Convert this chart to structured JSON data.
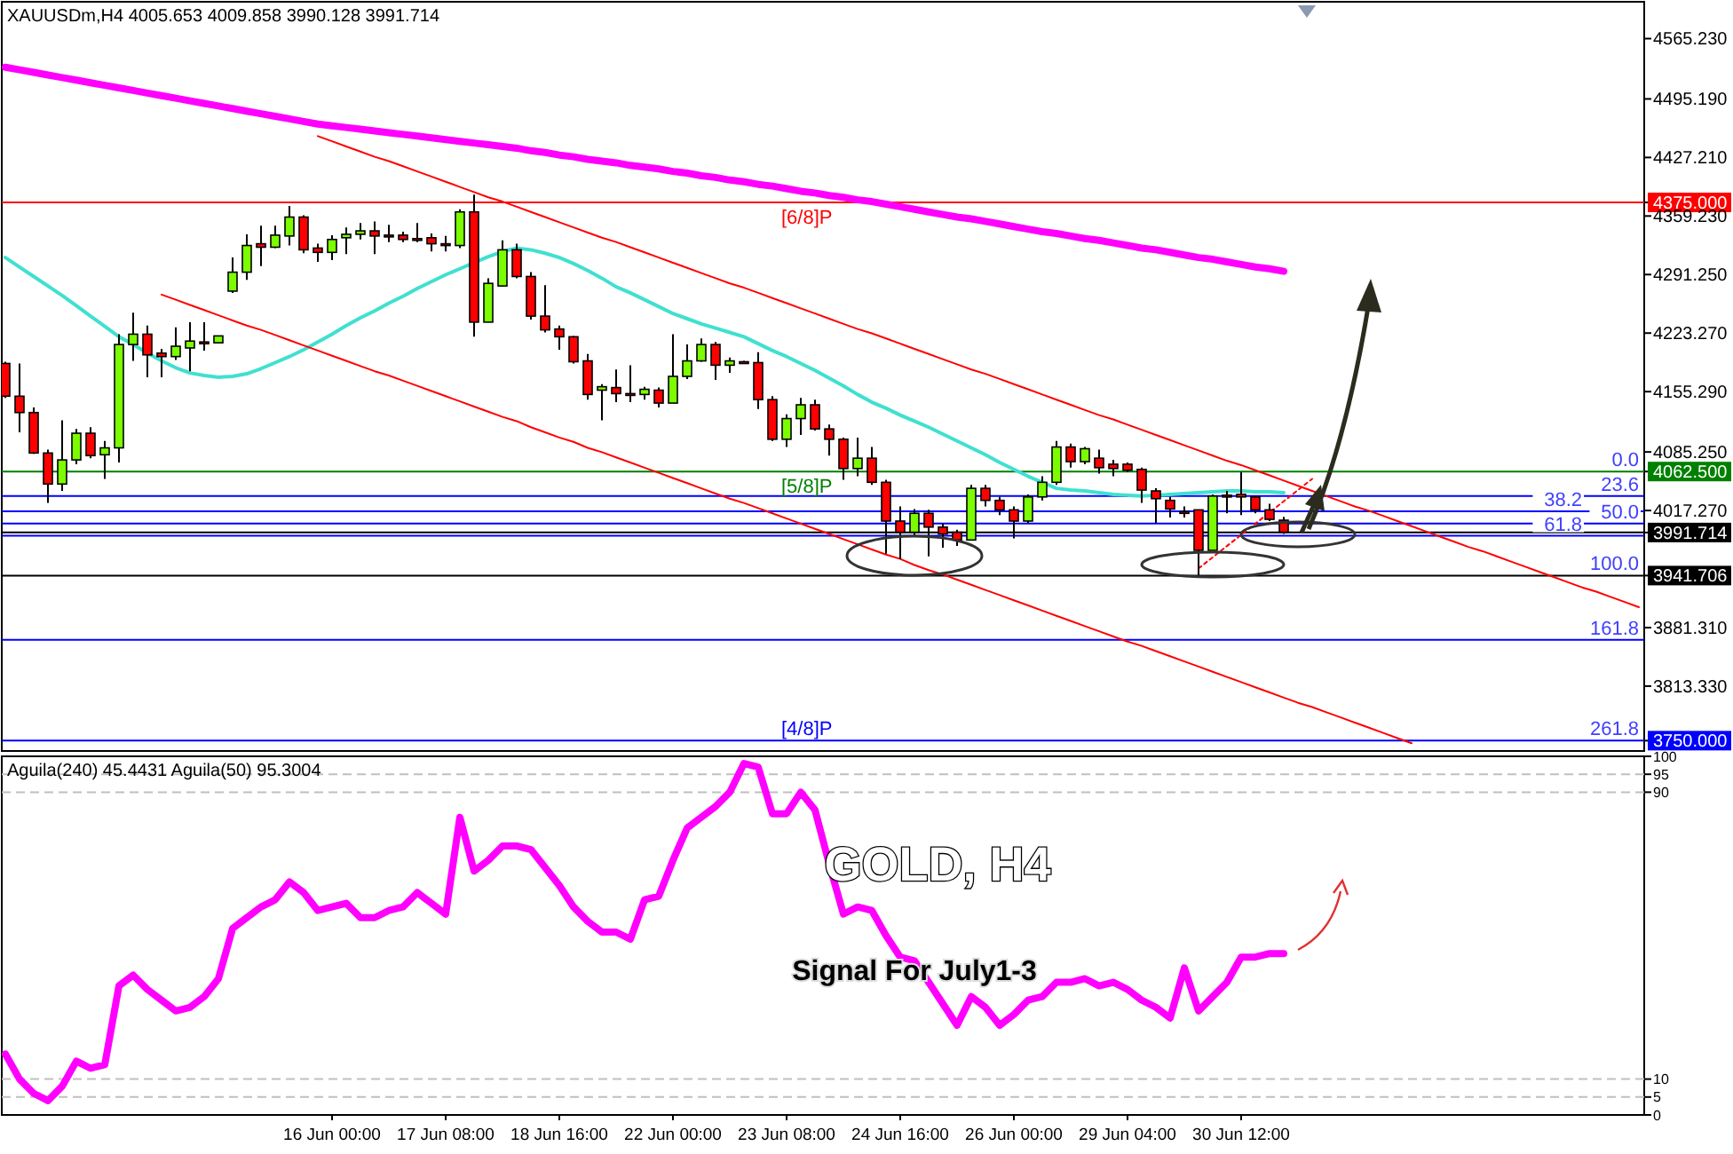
{
  "chart_data": [
    {
      "type": "candlestick",
      "title": "XAUUSDm,H4 4005.653 4009.858 3990.128 3991.714",
      "categories": [
        null,
        null,
        null,
        null,
        null,
        null,
        null,
        null,
        null,
        null,
        null,
        null,
        null,
        null,
        null,
        null,
        null,
        null,
        null,
        null,
        null,
        null,
        null,
        null,
        null,
        null,
        null,
        null,
        null,
        null,
        null,
        null,
        null,
        null,
        null,
        null,
        null,
        null,
        null,
        null,
        null,
        null,
        null,
        null,
        null,
        null,
        null,
        null,
        null,
        null,
        null,
        null,
        null,
        null,
        null,
        null,
        null,
        null,
        null,
        null,
        null,
        null,
        null,
        null,
        null,
        null,
        null,
        null,
        null,
        null,
        null,
        null,
        null,
        null,
        null,
        null,
        null,
        null,
        null,
        null,
        null,
        null,
        null,
        null,
        null,
        null,
        null,
        null,
        null,
        null,
        null,
        null,
        null,
        null,
        null,
        null,
        null,
        null,
        null,
        null,
        null,
        null,
        null,
        null,
        null,
        null,
        null,
        null,
        null,
        null,
        null,
        null,
        null,
        null,
        null,
        null
      ],
      "ohlc": [
        [
          4188,
          4190,
          4148,
          4150
        ],
        [
          4150,
          4188,
          4108,
          4131
        ],
        [
          4131,
          4137,
          4083,
          4084
        ],
        [
          4084,
          4088,
          4026,
          4048
        ],
        [
          4048,
          4122,
          4040,
          4076
        ],
        [
          4076,
          4112,
          4071,
          4107
        ],
        [
          4107,
          4114,
          4078,
          4081
        ],
        [
          4082,
          4098,
          4054,
          4090
        ],
        [
          4090,
          4222,
          4073,
          4210
        ],
        [
          4210,
          4247,
          4191,
          4222
        ],
        [
          4222,
          4232,
          4172,
          4198
        ],
        [
          4200,
          4205,
          4172,
          4196
        ],
        [
          4196,
          4230,
          4192,
          4208
        ],
        [
          4206,
          4236,
          4179,
          4214
        ],
        [
          4213,
          4236,
          4203,
          4212
        ],
        [
          4212,
          4220,
          4212,
          4220
        ],
        [
          4272,
          4311,
          4270,
          4294
        ],
        [
          4294,
          4338,
          4285,
          4325
        ],
        [
          4327,
          4348,
          4301,
          4323
        ],
        [
          4323,
          4348,
          4322,
          4337
        ],
        [
          4336,
          4371,
          4325,
          4358
        ],
        [
          4358,
          4360,
          4316,
          4320
        ],
        [
          4322,
          4327,
          4306,
          4317
        ],
        [
          4317,
          4337,
          4308,
          4332
        ],
        [
          4334,
          4346,
          4315,
          4338
        ],
        [
          4338,
          4351,
          4332,
          4342
        ],
        [
          4342,
          4353,
          4315,
          4336
        ],
        [
          4337,
          4349,
          4329,
          4336
        ],
        [
          4337,
          4341,
          4329,
          4332
        ],
        [
          4333,
          4351,
          4329,
          4332
        ],
        [
          4334,
          4339,
          4318,
          4327
        ],
        [
          4327,
          4336,
          4318,
          4326
        ],
        [
          4325,
          4367,
          4322,
          4364
        ],
        [
          4364,
          4384,
          4219,
          4236
        ],
        [
          4236,
          4287,
          4236,
          4281
        ],
        [
          4278,
          4331,
          4277,
          4320
        ],
        [
          4320,
          4327,
          4287,
          4289
        ],
        [
          4289,
          4294,
          4239,
          4243
        ],
        [
          4243,
          4279,
          4224,
          4227
        ],
        [
          4228,
          4232,
          4204,
          4219
        ],
        [
          4219,
          4220,
          4188,
          4190
        ],
        [
          4191,
          4199,
          4146,
          4152
        ],
        [
          4157,
          4164,
          4122,
          4161
        ],
        [
          4160,
          4181,
          4143,
          4153
        ],
        [
          4153,
          4186,
          4143,
          4152
        ],
        [
          4152,
          4161,
          4146,
          4158
        ],
        [
          4157,
          4160,
          4137,
          4142
        ],
        [
          4142,
          4222,
          4142,
          4173
        ],
        [
          4173,
          4210,
          4170,
          4191
        ],
        [
          4191,
          4217,
          4190,
          4210
        ],
        [
          4210,
          4213,
          4169,
          4186
        ],
        [
          4186,
          4195,
          4177,
          4191
        ],
        [
          4190,
          4191,
          4188,
          4189
        ],
        [
          4189,
          4201,
          4135,
          4146
        ],
        [
          4146,
          4150,
          4098,
          4100
        ],
        [
          4100,
          4129,
          4091,
          4124
        ],
        [
          4124,
          4148,
          4105,
          4140
        ],
        [
          4140,
          4146,
          4110,
          4112
        ],
        [
          4112,
          4117,
          4081,
          4100
        ],
        [
          4100,
          4102,
          4053,
          4066
        ],
        [
          4066,
          4102,
          4057,
          4078
        ],
        [
          4078,
          4091,
          4047,
          4050
        ],
        [
          4050,
          4053,
          3967,
          4005
        ],
        [
          4005,
          4022,
          3961,
          3992
        ],
        [
          3992,
          4019,
          3988,
          4014
        ],
        [
          4014,
          4018,
          3964,
          3998
        ],
        [
          3998,
          4002,
          3974,
          3990
        ],
        [
          3992,
          3995,
          3976,
          3983
        ],
        [
          3983,
          4047,
          3983,
          4043
        ],
        [
          4043,
          4047,
          4022,
          4029
        ],
        [
          4029,
          4033,
          4012,
          4018
        ],
        [
          4018,
          4022,
          3985,
          4005
        ],
        [
          4005,
          4036,
          4003,
          4033
        ],
        [
          4033,
          4057,
          4029,
          4050
        ],
        [
          4050,
          4098,
          4047,
          4091
        ],
        [
          4091,
          4095,
          4067,
          4074
        ],
        [
          4074,
          4091,
          4071,
          4089
        ],
        [
          4078,
          4088,
          4060,
          4067
        ],
        [
          4071,
          4076,
          4057,
          4066
        ],
        [
          4071,
          4073,
          4062,
          4064
        ],
        [
          4065,
          4067,
          4026,
          4041
        ],
        [
          4040,
          4043,
          4003,
          4031
        ],
        [
          4029,
          4033,
          4009,
          4019
        ],
        [
          4016,
          4022,
          4009,
          4015
        ],
        [
          4018,
          4018,
          3942,
          3971
        ],
        [
          3971,
          4036,
          3971,
          4034
        ],
        [
          4035,
          4040,
          4014,
          4034
        ],
        [
          4036,
          4062,
          4012,
          4033
        ],
        [
          4033,
          4034,
          4014,
          4018
        ],
        [
          4018,
          4025,
          4005,
          4007
        ],
        [
          4006,
          4010,
          3990,
          3992
        ],
        null,
        null,
        null,
        null,
        null,
        null,
        null,
        null,
        null,
        null,
        null,
        null,
        null,
        null,
        null,
        null,
        null,
        null,
        null,
        null,
        null,
        null,
        null,
        null,
        null
      ],
      "series": [
        {
          "type": "line",
          "color": "#ff00ff",
          "values": [
            4532,
            4529,
            4526,
            4523,
            4520,
            4517,
            4514,
            4511,
            4508,
            4505,
            4502,
            4499,
            4496,
            4493,
            4490,
            4487,
            4484,
            4481,
            4478,
            4475,
            4472,
            4469,
            4466,
            4464,
            4462,
            4460,
            4458,
            4456,
            4454,
            4452,
            4450,
            4448,
            4446,
            4444,
            4442,
            4440,
            4438,
            4435,
            4433,
            4430,
            4428,
            4425,
            4423,
            4421,
            4418,
            4416,
            4414,
            4411,
            4409,
            4406,
            4404,
            4401,
            4399,
            4396,
            4394,
            4391,
            4388,
            4386,
            4383,
            4381,
            4378,
            4376,
            4373,
            4370,
            4367,
            4364,
            4361,
            4358,
            4356,
            4353,
            4350,
            4347,
            4344,
            4341,
            4339,
            4336,
            4333,
            4331,
            4328,
            4325,
            4322,
            4320,
            4317,
            4314,
            4311,
            4309,
            4306,
            4303,
            4300,
            4298,
            4295,
            null,
            null,
            null,
            null,
            null,
            null,
            null,
            null,
            null,
            null,
            null,
            null,
            null,
            null,
            null,
            null,
            null,
            null,
            null,
            null,
            null,
            null,
            null,
            null,
            null
          ]
        },
        {
          "type": "line",
          "color": "#40e0d0",
          "values": [
            4311,
            4300,
            4289,
            4278,
            4267,
            4255,
            4243,
            4231,
            4219,
            4210,
            4200,
            4191,
            4183,
            4177,
            4174,
            4172,
            4173,
            4176,
            4182,
            4189,
            4196,
            4204,
            4213,
            4222,
            4232,
            4241,
            4249,
            4258,
            4266,
            4275,
            4283,
            4291,
            4298,
            4305,
            4312,
            4318,
            4322,
            4320,
            4316,
            4311,
            4304,
            4296,
            4287,
            4277,
            4270,
            4262,
            4254,
            4246,
            4240,
            4234,
            4229,
            4224,
            4219,
            4211,
            4203,
            4196,
            4188,
            4180,
            4171,
            4162,
            4152,
            4143,
            4136,
            4128,
            4121,
            4114,
            4106,
            4098,
            4090,
            4082,
            4073,
            4065,
            4057,
            4050,
            4043,
            4041,
            4040,
            4038,
            4036,
            4035,
            4034,
            4035,
            4036,
            4037,
            4038,
            4039,
            4040,
            4040,
            4039,
            4039,
            4038,
            null,
            null,
            null,
            null,
            null,
            null,
            null,
            null,
            null,
            null,
            null,
            null,
            null,
            null,
            null,
            null,
            null,
            null,
            null,
            null,
            null,
            null,
            null,
            null,
            null
          ]
        },
        {
          "type": "line",
          "color": "#ff0000",
          "values": [
            null,
            null,
            null,
            null,
            null,
            null,
            null,
            null,
            null,
            null,
            null,
            null,
            null,
            null,
            null,
            null,
            null,
            null,
            null,
            null,
            null,
            null,
            4452,
            4446,
            4440,
            4434,
            4428,
            4423,
            4417,
            4411,
            4405,
            4399,
            4393,
            4387,
            4381,
            4376,
            4370,
            4364,
            4358,
            4352,
            4346,
            4340,
            4334,
            4329,
            4323,
            4317,
            4311,
            4305,
            4299,
            4293,
            4287,
            4281,
            4276,
            4270,
            4264,
            4258,
            4252,
            4246,
            4240,
            4234,
            4228,
            4223,
            4217,
            4211,
            4205,
            4199,
            4193,
            4187,
            4181,
            4176,
            4170,
            4164,
            4158,
            4152,
            4146,
            4140,
            4134,
            4128,
            4123,
            4117,
            4111,
            4105,
            4099,
            4093,
            4087,
            4081,
            4075,
            4070,
            4064,
            4058,
            4052,
            4046,
            4040,
            4034,
            4028,
            4022,
            4017,
            4011,
            4005,
            3999,
            3993,
            3987,
            3981,
            3975,
            3970,
            3964,
            3958,
            3952,
            3946,
            3940,
            3934,
            3928,
            3923,
            3917,
            3911,
            3905
          ]
        },
        {
          "type": "line",
          "color": "#ff0000",
          "values": [
            null,
            null,
            null,
            null,
            null,
            null,
            null,
            null,
            null,
            null,
            null,
            4268,
            4262,
            4256,
            4250,
            4244,
            4238,
            4232,
            4227,
            4221,
            4215,
            4209,
            4203,
            4197,
            4191,
            4185,
            4179,
            4174,
            4168,
            4162,
            4156,
            4150,
            4144,
            4138,
            4132,
            4126,
            4121,
            4114,
            4108,
            4102,
            4097,
            4090,
            4085,
            4079,
            4073,
            4067,
            4061,
            4055,
            4049,
            4043,
            4037,
            4031,
            4026,
            4020,
            4014,
            4008,
            4002,
            3996,
            3990,
            3984,
            3978,
            3972,
            3966,
            3961,
            3954,
            3948,
            3943,
            3937,
            3931,
            3925,
            3919,
            3913,
            3907,
            3901,
            3895,
            3889,
            3883,
            3877,
            3871,
            3865,
            3860,
            3854,
            3848,
            3842,
            3836,
            3830,
            3824,
            3818,
            3812,
            3806,
            3800,
            3794,
            3789,
            3783,
            3777,
            3771,
            3765,
            3759,
            3753,
            3747,
            null,
            null,
            null,
            null,
            null,
            null,
            null,
            null,
            null,
            null,
            null,
            null,
            null,
            null,
            null,
            null
          ]
        },
        {
          "type": "line",
          "color": "#ff0000",
          "line_style": "dotted",
          "values": [
            null,
            null,
            null,
            null,
            null,
            null,
            null,
            null,
            null,
            null,
            null,
            null,
            null,
            null,
            null,
            null,
            null,
            null,
            null,
            null,
            null,
            null,
            null,
            null,
            null,
            null,
            null,
            null,
            null,
            null,
            null,
            null,
            null,
            null,
            null,
            null,
            null,
            null,
            null,
            null,
            null,
            null,
            null,
            null,
            null,
            null,
            null,
            null,
            null,
            null,
            null,
            null,
            null,
            null,
            null,
            null,
            null,
            null,
            null,
            null,
            null,
            null,
            null,
            null,
            null,
            null,
            null,
            null,
            null,
            null,
            null,
            null,
            null,
            null,
            null,
            null,
            null,
            null,
            null,
            null,
            null,
            null,
            null,
            null,
            3950,
            3963,
            3976,
            3989,
            4002,
            4015,
            4028,
            4041,
            4054,
            null,
            null,
            null,
            null,
            null,
            null,
            null,
            null,
            null,
            null,
            null,
            null,
            null,
            null,
            null,
            null,
            null,
            null,
            null,
            null,
            null,
            null,
            null
          ]
        }
      ],
      "ylim": [
        3738,
        4608
      ],
      "yticks": [
        {
          "value": 4565.23,
          "label": "4565.230"
        },
        {
          "value": 4495.19,
          "label": "4495.190"
        },
        {
          "value": 4427.21,
          "label": "4427.210"
        },
        {
          "value": 4359.23,
          "label": "4359.230"
        },
        {
          "value": 4291.25,
          "label": "4291.250"
        },
        {
          "value": 4223.27,
          "label": "4223.270"
        },
        {
          "value": 4155.29,
          "label": "4155.290"
        },
        {
          "value": 4085.25,
          "label": "4085.250"
        },
        {
          "value": 4017.27,
          "label": "4017.270"
        },
        {
          "value": 3881.31,
          "label": "3881.310"
        },
        {
          "value": 3813.33,
          "label": "3813.330"
        },
        {
          "value": 4375,
          "label": "4375.000"
        },
        {
          "value": 4062.5,
          "label": "4062.500"
        },
        {
          "value": 3991.714,
          "label": "3991.714"
        },
        {
          "value": 3941.706,
          "label": "3941.706"
        },
        {
          "value": 3750,
          "label": "3750.000"
        }
      ],
      "ref_lines": [
        {
          "axis": "y",
          "value": 4375,
          "label": "[6/8]P",
          "color": "#ff0000"
        },
        {
          "axis": "y",
          "value": 4062.5,
          "label": "[5/8]P",
          "color": "#008000"
        },
        {
          "axis": "y",
          "value": 4034,
          "color": "#0000ff"
        },
        {
          "axis": "y",
          "value": 4016.4,
          "color": "#0000ff"
        },
        {
          "axis": "y",
          "value": 4002.1,
          "color": "#0000ff"
        },
        {
          "axis": "y",
          "value": 3987.9,
          "color": "#0000ff"
        },
        {
          "axis": "y",
          "value": 3991.714,
          "color": "#000000"
        },
        {
          "axis": "y",
          "value": 3941.706,
          "color": "#000000"
        },
        {
          "axis": "y",
          "value": 3867.1,
          "color": "#0000ff"
        },
        {
          "axis": "y",
          "value": 3750,
          "label": "[4/8]P",
          "color": "#0000ff"
        }
      ],
      "annotations": [
        {
          "text": "0.0",
          "y": 4062.5
        },
        {
          "text": "23.6",
          "y": 4034
        },
        {
          "text": "38.2",
          "y": 4016.4
        },
        {
          "text": "50.0",
          "y": 4002.1
        },
        {
          "text": "61.8",
          "y": 3987.9
        },
        {
          "text": "100.0",
          "y": 3941.706
        },
        {
          "text": "161.8",
          "y": 3867.1
        },
        {
          "text": "261.8",
          "y": 3750
        }
      ],
      "tick_labels": "y"
    },
    {
      "type": "line",
      "title": "Aguila(240) 45.4431 Aguila(50) 95.3004",
      "categories": [
        null,
        null,
        null,
        null,
        null,
        null,
        null,
        null,
        null,
        null,
        null,
        null,
        null,
        null,
        null,
        null,
        null,
        null,
        null,
        null,
        null,
        null,
        null,
        "16 Jun 00:00",
        null,
        null,
        null,
        null,
        null,
        null,
        null,
        "17 Jun 08:00",
        null,
        null,
        null,
        null,
        null,
        null,
        null,
        "18 Jun 16:00",
        null,
        null,
        null,
        null,
        null,
        null,
        null,
        "22 Jun 00:00",
        null,
        null,
        null,
        null,
        null,
        null,
        null,
        "23 Jun 08:00",
        null,
        null,
        null,
        null,
        null,
        null,
        null,
        "24 Jun 16:00",
        null,
        null,
        null,
        null,
        null,
        null,
        null,
        "26 Jun 00:00",
        null,
        null,
        null,
        null,
        null,
        null,
        null,
        "29 Jun 04:00",
        null,
        null,
        null,
        null,
        null,
        null,
        null,
        "30 Jun 12:00",
        null,
        null,
        null,
        null,
        null,
        null,
        null,
        null,
        null,
        null,
        null,
        null,
        null,
        null,
        null,
        null,
        null,
        null,
        null,
        null,
        null,
        null,
        null,
        null,
        null,
        null,
        null,
        null
      ],
      "series": [
        {
          "color": "#ff00ff",
          "values": [
            17,
            10,
            6,
            4,
            8,
            15,
            13,
            14,
            36,
            39,
            35,
            32,
            29,
            30,
            33,
            38,
            52,
            55,
            58,
            60,
            65,
            62,
            57,
            58,
            59,
            55,
            55,
            57,
            58,
            62,
            59,
            56,
            83,
            68,
            71,
            75,
            75,
            74,
            69,
            64,
            58,
            54,
            51,
            51,
            49,
            60,
            61,
            71,
            80,
            83,
            86,
            90,
            98,
            97,
            84,
            84,
            90,
            85,
            70,
            56,
            58,
            57,
            50,
            44,
            43,
            37,
            31,
            25,
            33,
            30,
            25,
            28,
            32,
            33,
            37,
            37,
            38,
            36,
            37,
            35,
            32,
            30,
            27,
            41,
            29,
            33,
            37,
            44,
            44,
            45,
            45,
            null,
            null,
            null,
            null,
            null,
            null,
            null,
            null,
            null,
            null,
            null,
            null,
            null,
            null,
            null,
            null,
            null,
            null,
            null,
            null,
            null,
            null,
            null,
            null,
            null
          ]
        }
      ],
      "ylim": [
        0,
        100
      ],
      "yticks": [
        0,
        5,
        10,
        90,
        95,
        100
      ],
      "ref_lines": [
        {
          "axis": "y",
          "value": 95,
          "color": "#c0c0c0",
          "line_style": "dashed"
        },
        {
          "axis": "y",
          "value": 90,
          "color": "#c0c0c0",
          "line_style": "dashed"
        },
        {
          "axis": "y",
          "value": 10,
          "color": "#c0c0c0",
          "line_style": "dashed"
        },
        {
          "axis": "y",
          "value": 5,
          "color": "#c0c0c0",
          "line_style": "dashed"
        }
      ],
      "annotations": [
        "GOLD, H4",
        "Signal For July1-3"
      ]
    }
  ]
}
